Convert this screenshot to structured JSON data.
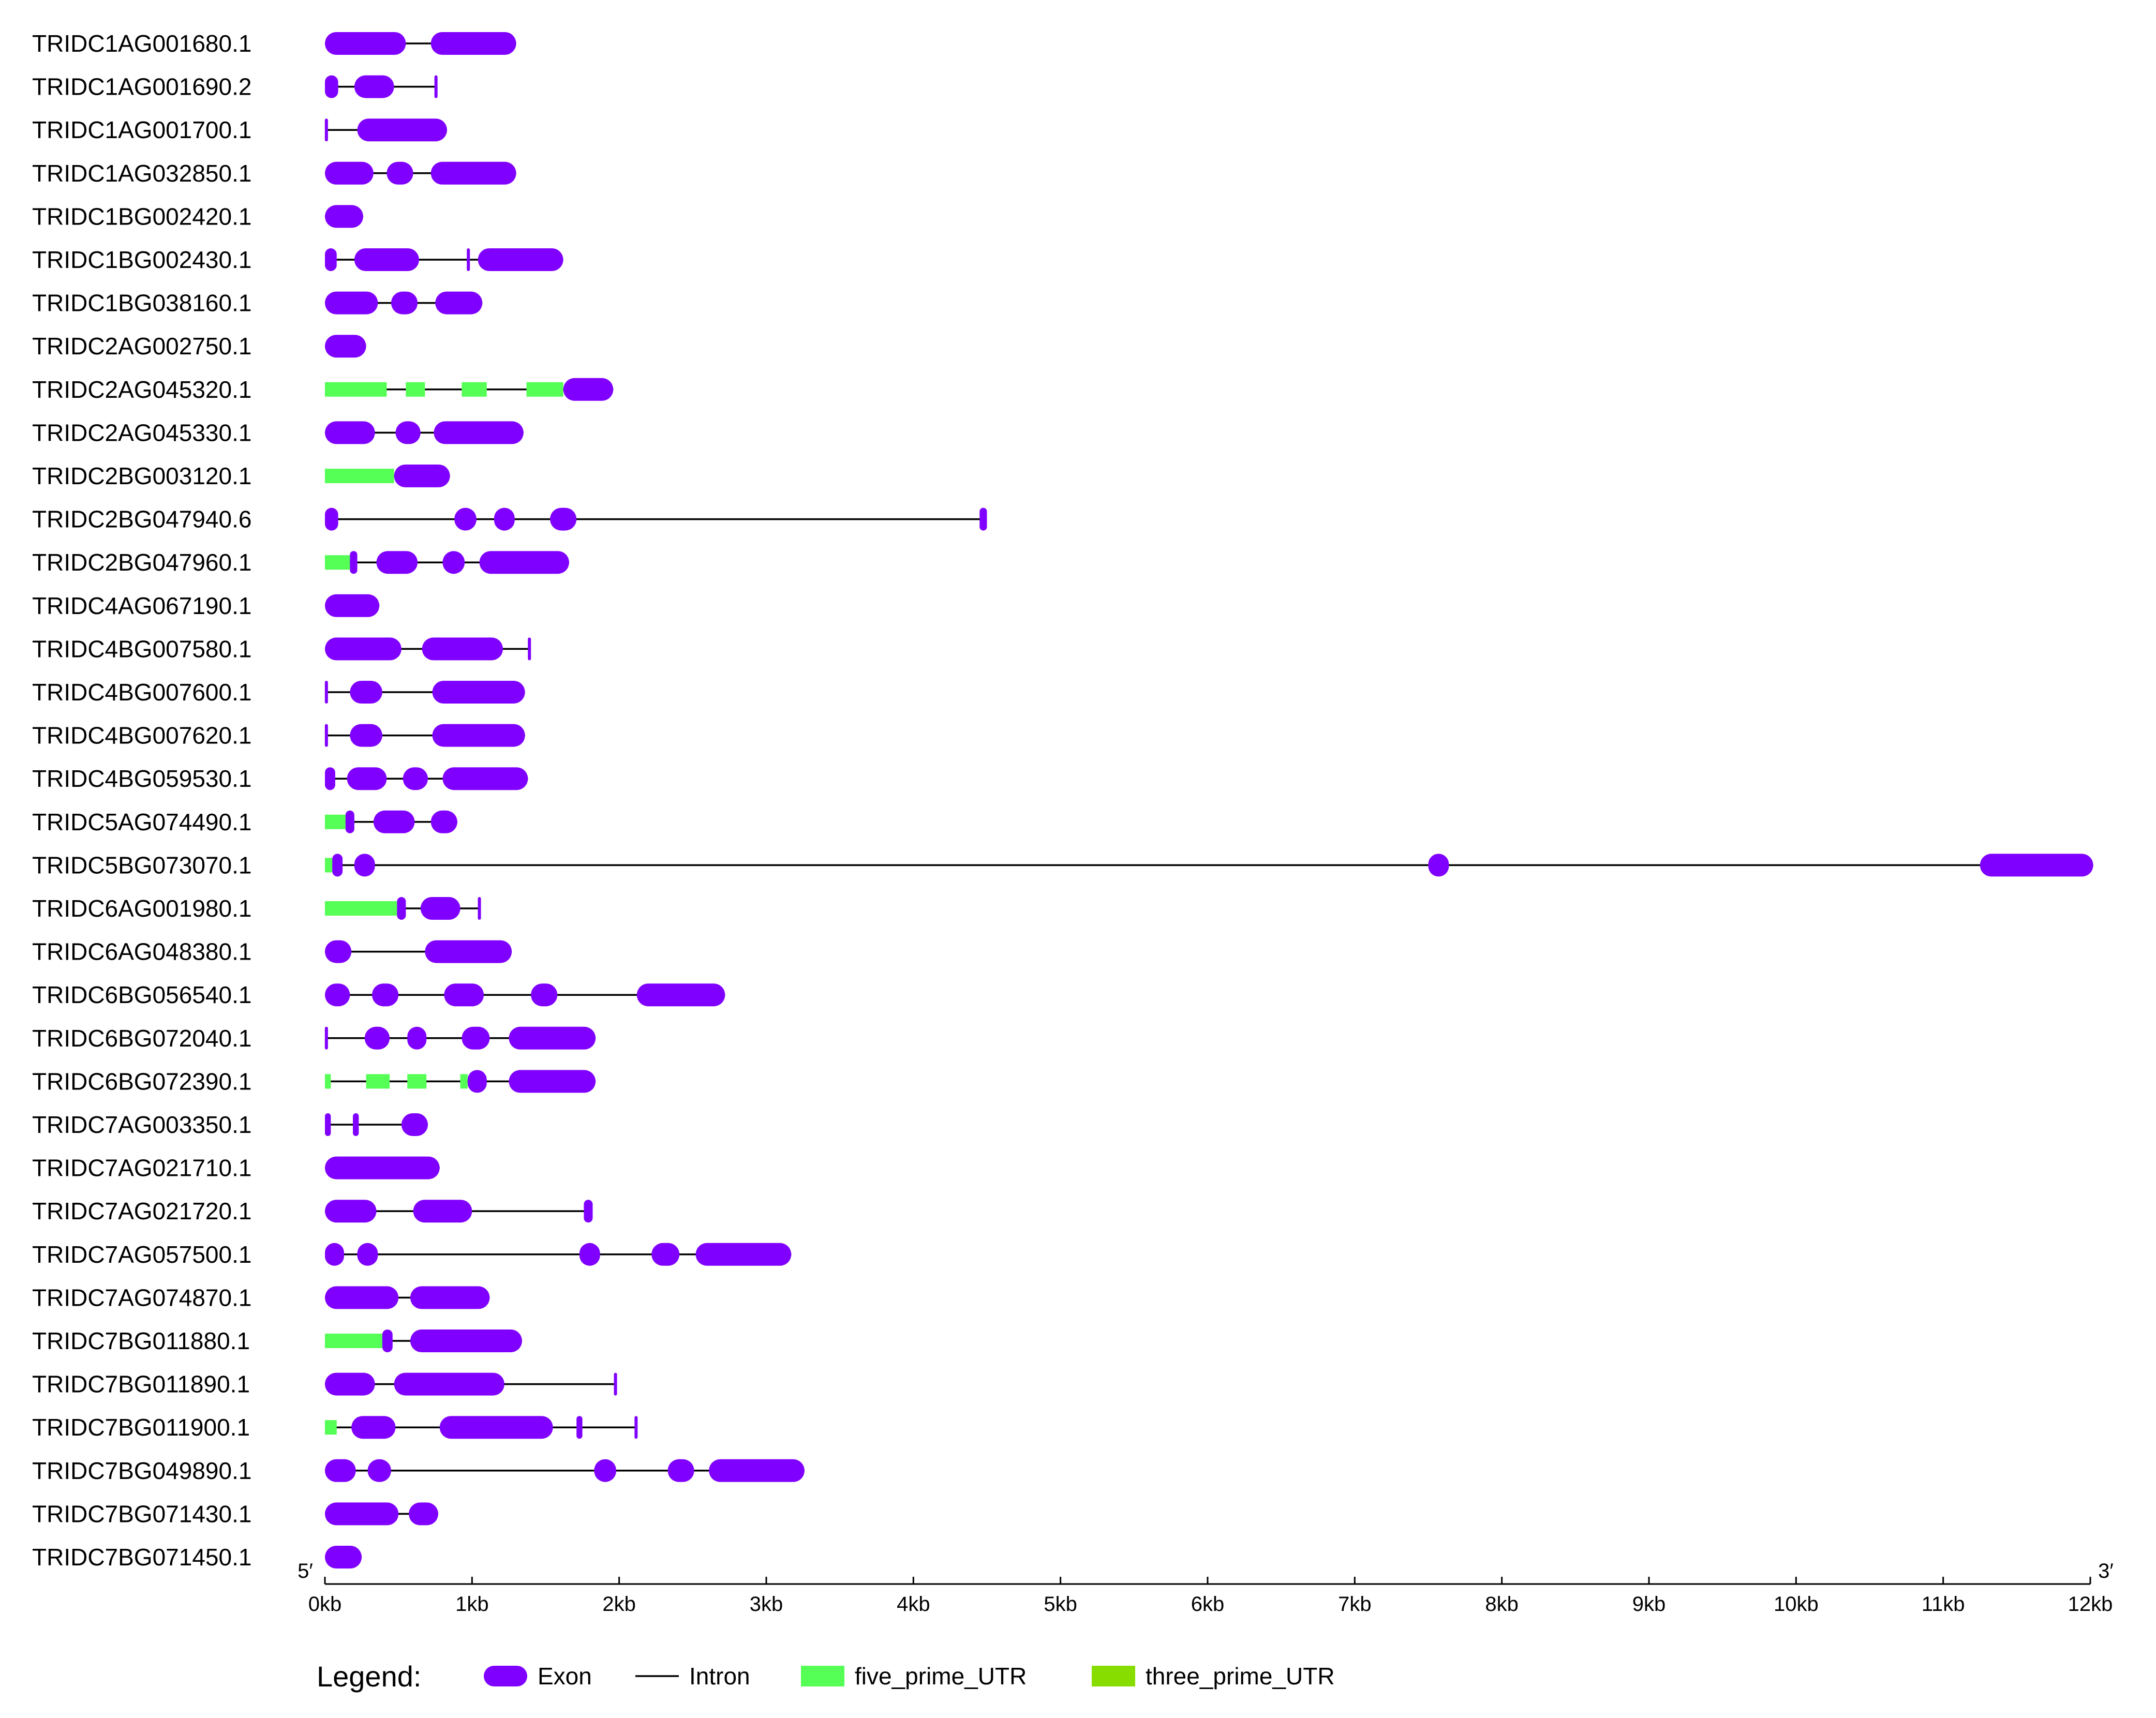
{
  "chart_data": {
    "type": "gene_structure",
    "x_unit": "kb",
    "x_range": [
      0,
      12
    ],
    "five_prime_label": "5′",
    "three_prime_label": "3′",
    "x_ticks": [
      "0kb",
      "1kb",
      "2kb",
      "3kb",
      "4kb",
      "5kb",
      "6kb",
      "7kb",
      "8kb",
      "9kb",
      "10kb",
      "11kb",
      "12kb"
    ],
    "colors": {
      "exon": "#8000ff",
      "intron": "#000000",
      "five_prime_utr": "#55ff55",
      "three_prime_utr": "#88dd00"
    },
    "genes": [
      {
        "name": "TRIDC1AG001680.1",
        "span": [
          0,
          1.3
        ],
        "features": [
          {
            "t": "exon",
            "s": 0,
            "e": 0.55
          },
          {
            "t": "exon",
            "s": 0.72,
            "e": 1.3
          }
        ]
      },
      {
        "name": "TRIDC1AG001690.2",
        "span": [
          0,
          0.76
        ],
        "features": [
          {
            "t": "exon",
            "s": 0,
            "e": 0.09
          },
          {
            "t": "exon",
            "s": 0.2,
            "e": 0.47
          },
          {
            "t": "exon",
            "s": 0.75,
            "e": 0.76
          }
        ]
      },
      {
        "name": "TRIDC1AG001700.1",
        "span": [
          0,
          0.83
        ],
        "features": [
          {
            "t": "exon",
            "s": 0,
            "e": 0.02
          },
          {
            "t": "exon",
            "s": 0.22,
            "e": 0.83
          }
        ]
      },
      {
        "name": "TRIDC1AG032850.1",
        "span": [
          0,
          1.3
        ],
        "features": [
          {
            "t": "exon",
            "s": 0,
            "e": 0.33
          },
          {
            "t": "exon",
            "s": 0.42,
            "e": 0.6
          },
          {
            "t": "exon",
            "s": 0.72,
            "e": 1.3
          }
        ]
      },
      {
        "name": "TRIDC1BG002420.1",
        "span": [
          0,
          0.26
        ],
        "features": [
          {
            "t": "exon",
            "s": 0,
            "e": 0.26
          }
        ]
      },
      {
        "name": "TRIDC1BG002430.1",
        "span": [
          0,
          1.62
        ],
        "features": [
          {
            "t": "exon",
            "s": 0,
            "e": 0.08
          },
          {
            "t": "exon",
            "s": 0.2,
            "e": 0.64
          },
          {
            "t": "exon",
            "s": 0.97,
            "e": 0.98
          },
          {
            "t": "exon",
            "s": 1.04,
            "e": 1.62
          }
        ]
      },
      {
        "name": "TRIDC1BG038160.1",
        "span": [
          0,
          1.07
        ],
        "features": [
          {
            "t": "exon",
            "s": 0,
            "e": 0.36
          },
          {
            "t": "exon",
            "s": 0.45,
            "e": 0.63
          },
          {
            "t": "exon",
            "s": 0.75,
            "e": 1.07
          }
        ]
      },
      {
        "name": "TRIDC2AG002750.1",
        "span": [
          0,
          0.28
        ],
        "features": [
          {
            "t": "exon",
            "s": 0,
            "e": 0.28
          }
        ]
      },
      {
        "name": "TRIDC2AG045320.1",
        "span": [
          0,
          1.96
        ],
        "features": [
          {
            "t": "utr5",
            "s": 0,
            "e": 0.42
          },
          {
            "t": "utr5",
            "s": 0.55,
            "e": 0.68
          },
          {
            "t": "utr5",
            "s": 0.93,
            "e": 1.1
          },
          {
            "t": "utr5",
            "s": 1.37,
            "e": 1.62
          },
          {
            "t": "exon",
            "s": 1.62,
            "e": 1.96
          }
        ]
      },
      {
        "name": "TRIDC2AG045330.1",
        "span": [
          0,
          1.35
        ],
        "features": [
          {
            "t": "exon",
            "s": 0,
            "e": 0.34
          },
          {
            "t": "exon",
            "s": 0.48,
            "e": 0.65
          },
          {
            "t": "exon",
            "s": 0.74,
            "e": 1.35
          }
        ]
      },
      {
        "name": "TRIDC2BG003120.1",
        "span": [
          0,
          0.85
        ],
        "features": [
          {
            "t": "utr5",
            "s": 0,
            "e": 0.47
          },
          {
            "t": "exon",
            "s": 0.47,
            "e": 0.85
          }
        ]
      },
      {
        "name": "TRIDC2BG047940.6",
        "span": [
          0,
          4.5
        ],
        "features": [
          {
            "t": "exon",
            "s": 0,
            "e": 0.09
          },
          {
            "t": "exon",
            "s": 0.88,
            "e": 1.03
          },
          {
            "t": "exon",
            "s": 1.15,
            "e": 1.29
          },
          {
            "t": "exon",
            "s": 1.53,
            "e": 1.71
          },
          {
            "t": "exon",
            "s": 4.45,
            "e": 4.5
          }
        ]
      },
      {
        "name": "TRIDC2BG047960.1",
        "span": [
          0,
          1.66
        ],
        "features": [
          {
            "t": "utr5",
            "s": 0,
            "e": 0.17
          },
          {
            "t": "exon",
            "s": 0.17,
            "e": 0.22
          },
          {
            "t": "exon",
            "s": 0.35,
            "e": 0.63
          },
          {
            "t": "exon",
            "s": 0.8,
            "e": 0.95
          },
          {
            "t": "exon",
            "s": 1.05,
            "e": 1.66
          }
        ]
      },
      {
        "name": "TRIDC4AG067190.1",
        "span": [
          0,
          0.37
        ],
        "features": [
          {
            "t": "exon",
            "s": 0,
            "e": 0.37
          }
        ]
      },
      {
        "name": "TRIDC4BG007580.1",
        "span": [
          0,
          1.4
        ],
        "features": [
          {
            "t": "exon",
            "s": 0,
            "e": 0.52
          },
          {
            "t": "exon",
            "s": 0.66,
            "e": 1.21
          },
          {
            "t": "exon",
            "s": 1.38,
            "e": 1.4
          }
        ]
      },
      {
        "name": "TRIDC4BG007600.1",
        "span": [
          0,
          1.36
        ],
        "features": [
          {
            "t": "exon",
            "s": 0,
            "e": 0.02
          },
          {
            "t": "exon",
            "s": 0.17,
            "e": 0.39
          },
          {
            "t": "exon",
            "s": 0.73,
            "e": 1.36
          }
        ]
      },
      {
        "name": "TRIDC4BG007620.1",
        "span": [
          0,
          1.36
        ],
        "features": [
          {
            "t": "exon",
            "s": 0,
            "e": 0.02
          },
          {
            "t": "exon",
            "s": 0.17,
            "e": 0.39
          },
          {
            "t": "exon",
            "s": 0.73,
            "e": 1.36
          }
        ]
      },
      {
        "name": "TRIDC4BG059530.1",
        "span": [
          0,
          1.38
        ],
        "features": [
          {
            "t": "exon",
            "s": 0,
            "e": 0.07
          },
          {
            "t": "exon",
            "s": 0.15,
            "e": 0.42
          },
          {
            "t": "exon",
            "s": 0.53,
            "e": 0.7
          },
          {
            "t": "exon",
            "s": 0.8,
            "e": 1.38
          }
        ]
      },
      {
        "name": "TRIDC5AG074490.1",
        "span": [
          0,
          0.9
        ],
        "features": [
          {
            "t": "utr5",
            "s": 0,
            "e": 0.14
          },
          {
            "t": "exon",
            "s": 0.14,
            "e": 0.2
          },
          {
            "t": "exon",
            "s": 0.33,
            "e": 0.61
          },
          {
            "t": "exon",
            "s": 0.72,
            "e": 0.9
          }
        ]
      },
      {
        "name": "TRIDC5BG073070.1",
        "span": [
          0,
          12.02
        ],
        "features": [
          {
            "t": "utr5",
            "s": 0,
            "e": 0.05
          },
          {
            "t": "exon",
            "s": 0.05,
            "e": 0.12
          },
          {
            "t": "exon",
            "s": 0.2,
            "e": 0.34
          },
          {
            "t": "exon",
            "s": 7.5,
            "e": 7.64
          },
          {
            "t": "exon",
            "s": 11.25,
            "e": 12.02
          }
        ]
      },
      {
        "name": "TRIDC6AG001980.1",
        "span": [
          0,
          1.06
        ],
        "features": [
          {
            "t": "utr5",
            "s": 0,
            "e": 0.49
          },
          {
            "t": "exon",
            "s": 0.49,
            "e": 0.55
          },
          {
            "t": "exon",
            "s": 0.65,
            "e": 0.92
          },
          {
            "t": "exon",
            "s": 1.04,
            "e": 1.06
          }
        ]
      },
      {
        "name": "TRIDC6AG048380.1",
        "span": [
          0,
          1.27
        ],
        "features": [
          {
            "t": "exon",
            "s": 0,
            "e": 0.18
          },
          {
            "t": "exon",
            "s": 0.68,
            "e": 1.27
          }
        ]
      },
      {
        "name": "TRIDC6BG056540.1",
        "span": [
          0,
          2.72
        ],
        "features": [
          {
            "t": "exon",
            "s": 0,
            "e": 0.17
          },
          {
            "t": "exon",
            "s": 0.32,
            "e": 0.5
          },
          {
            "t": "exon",
            "s": 0.81,
            "e": 1.08
          },
          {
            "t": "exon",
            "s": 1.4,
            "e": 1.58
          },
          {
            "t": "exon",
            "s": 2.12,
            "e": 2.72
          }
        ]
      },
      {
        "name": "TRIDC6BG072040.1",
        "span": [
          0,
          1.84
        ],
        "features": [
          {
            "t": "exon",
            "s": 0,
            "e": 0.02
          },
          {
            "t": "exon",
            "s": 0.27,
            "e": 0.44
          },
          {
            "t": "exon",
            "s": 0.56,
            "e": 0.69
          },
          {
            "t": "exon",
            "s": 0.93,
            "e": 1.12
          },
          {
            "t": "exon",
            "s": 1.25,
            "e": 1.84
          }
        ]
      },
      {
        "name": "TRIDC6BG072390.1",
        "span": [
          0,
          1.84
        ],
        "features": [
          {
            "t": "utr5",
            "s": 0,
            "e": 0.04
          },
          {
            "t": "utr5",
            "s": 0.28,
            "e": 0.44
          },
          {
            "t": "utr5",
            "s": 0.56,
            "e": 0.69
          },
          {
            "t": "utr5",
            "s": 0.92,
            "e": 0.97
          },
          {
            "t": "exon",
            "s": 0.97,
            "e": 1.1
          },
          {
            "t": "exon",
            "s": 1.25,
            "e": 1.84
          }
        ]
      },
      {
        "name": "TRIDC7AG003350.1",
        "span": [
          0,
          0.7
        ],
        "features": [
          {
            "t": "exon",
            "s": 0,
            "e": 0.04
          },
          {
            "t": "exon",
            "s": 0.19,
            "e": 0.23
          },
          {
            "t": "exon",
            "s": 0.52,
            "e": 0.7
          }
        ]
      },
      {
        "name": "TRIDC7AG021710.1",
        "span": [
          0,
          0.78
        ],
        "features": [
          {
            "t": "exon",
            "s": 0,
            "e": 0.78
          }
        ]
      },
      {
        "name": "TRIDC7AG021720.1",
        "span": [
          0,
          1.82
        ],
        "features": [
          {
            "t": "exon",
            "s": 0,
            "e": 0.35
          },
          {
            "t": "exon",
            "s": 0.6,
            "e": 1.0
          },
          {
            "t": "exon",
            "s": 1.76,
            "e": 1.82
          }
        ]
      },
      {
        "name": "TRIDC7AG057500.1",
        "span": [
          0,
          3.17
        ],
        "features": [
          {
            "t": "exon",
            "s": 0,
            "e": 0.13
          },
          {
            "t": "exon",
            "s": 0.22,
            "e": 0.36
          },
          {
            "t": "exon",
            "s": 1.73,
            "e": 1.87
          },
          {
            "t": "exon",
            "s": 2.22,
            "e": 2.41
          },
          {
            "t": "exon",
            "s": 2.52,
            "e": 3.17
          }
        ]
      },
      {
        "name": "TRIDC7AG074870.1",
        "span": [
          0,
          1.12
        ],
        "features": [
          {
            "t": "exon",
            "s": 0,
            "e": 0.5
          },
          {
            "t": "exon",
            "s": 0.58,
            "e": 1.12
          }
        ]
      },
      {
        "name": "TRIDC7BG011880.1",
        "span": [
          0,
          1.34
        ],
        "features": [
          {
            "t": "utr5",
            "s": 0,
            "e": 0.39
          },
          {
            "t": "exon",
            "s": 0.39,
            "e": 0.46
          },
          {
            "t": "exon",
            "s": 0.58,
            "e": 1.34
          }
        ]
      },
      {
        "name": "TRIDC7BG011890.1",
        "span": [
          0,
          1.98
        ],
        "features": [
          {
            "t": "exon",
            "s": 0,
            "e": 0.34
          },
          {
            "t": "exon",
            "s": 0.47,
            "e": 1.22
          },
          {
            "t": "exon",
            "s": 1.97,
            "e": 1.98
          }
        ]
      },
      {
        "name": "TRIDC7BG011900.1",
        "span": [
          0,
          2.12
        ],
        "features": [
          {
            "t": "utr5",
            "s": 0,
            "e": 0.08
          },
          {
            "t": "exon",
            "s": 0.18,
            "e": 0.48
          },
          {
            "t": "exon",
            "s": 0.78,
            "e": 1.55
          },
          {
            "t": "exon",
            "s": 1.71,
            "e": 1.75
          },
          {
            "t": "exon",
            "s": 2.11,
            "e": 2.12
          }
        ]
      },
      {
        "name": "TRIDC7BG049890.1",
        "span": [
          0,
          3.26
        ],
        "features": [
          {
            "t": "exon",
            "s": 0,
            "e": 0.21
          },
          {
            "t": "exon",
            "s": 0.29,
            "e": 0.45
          },
          {
            "t": "exon",
            "s": 1.83,
            "e": 1.98
          },
          {
            "t": "exon",
            "s": 2.33,
            "e": 2.51
          },
          {
            "t": "exon",
            "s": 2.61,
            "e": 3.26
          }
        ]
      },
      {
        "name": "TRIDC7BG071430.1",
        "span": [
          0,
          0.77
        ],
        "features": [
          {
            "t": "exon",
            "s": 0,
            "e": 0.5
          },
          {
            "t": "exon",
            "s": 0.57,
            "e": 0.77
          }
        ]
      },
      {
        "name": "TRIDC7BG071450.1",
        "span": [
          0,
          0.25
        ],
        "features": [
          {
            "t": "exon",
            "s": 0,
            "e": 0.25
          }
        ]
      }
    ]
  },
  "legend": {
    "title": "Legend:",
    "items": [
      {
        "key": "exon",
        "label": "Exon"
      },
      {
        "key": "intron",
        "label": "Intron"
      },
      {
        "key": "five_prime_utr",
        "label": "five_prime_UTR"
      },
      {
        "key": "three_prime_utr",
        "label": "three_prime_UTR"
      }
    ]
  }
}
